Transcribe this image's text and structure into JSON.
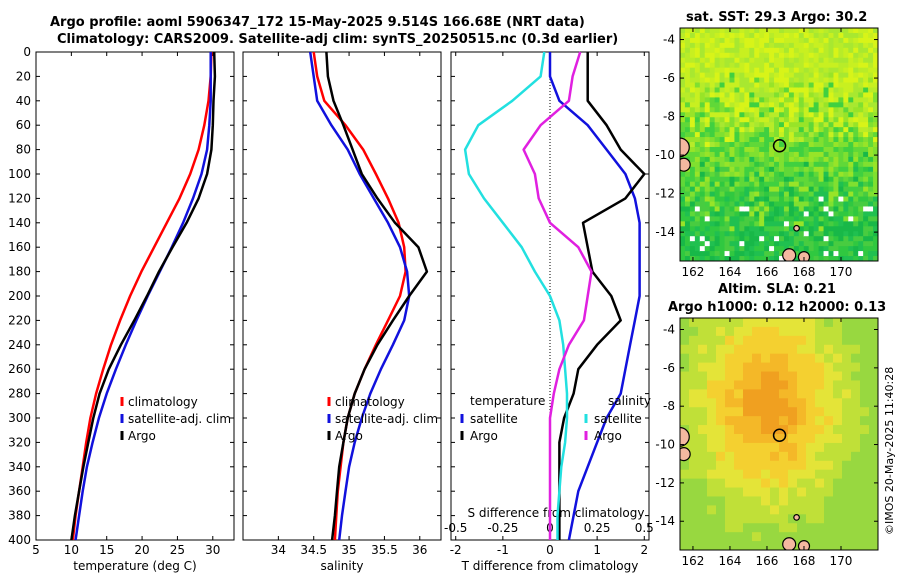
{
  "title": {
    "line1": "Argo profile: aoml 5906347_172 15-May-2025 9.514S 166.68E (NRT data)",
    "line2": "Climatology: CARS2009. Satellite-adj clim: synTS_20250515.nc (0.3d earlier)"
  },
  "map_titles": {
    "sst": "sat. SST: 29.3 Argo: 30.2",
    "sla1": "Altim. SLA: 0.21",
    "sla2": "Argo h1000: 0.12 h2000: 0.13"
  },
  "watermark": "©IMOS 20-May-2025 11:40:28",
  "colors": {
    "climatology": "#ff0000",
    "satellite": "#1111dd",
    "argo": "#000000",
    "sat_diff": "#22e0e0",
    "argo_sal_diff": "#e020e0"
  },
  "chart_data": [
    {
      "type": "line",
      "panel": "temperature",
      "xlabel": "temperature (deg C)",
      "ylabel": "depth",
      "xlim": [
        5,
        33
      ],
      "ylim": [
        0,
        400
      ],
      "xticks": [
        5,
        10,
        15,
        20,
        25,
        30
      ],
      "yticks": [
        0,
        20,
        40,
        60,
        80,
        100,
        120,
        140,
        160,
        180,
        200,
        220,
        240,
        260,
        280,
        300,
        320,
        340,
        360,
        380,
        400
      ],
      "legend": [
        "climatology",
        "satellite-adj. clim",
        "Argo"
      ],
      "series": [
        {
          "name": "climatology",
          "color": "#ff0000",
          "points": [
            [
              29.8,
              0
            ],
            [
              29.7,
              20
            ],
            [
              29.4,
              40
            ],
            [
              28.8,
              60
            ],
            [
              28.0,
              80
            ],
            [
              26.8,
              100
            ],
            [
              25.3,
              120
            ],
            [
              23.5,
              140
            ],
            [
              21.7,
              160
            ],
            [
              19.9,
              180
            ],
            [
              18.3,
              200
            ],
            [
              16.9,
              220
            ],
            [
              15.6,
              240
            ],
            [
              14.5,
              260
            ],
            [
              13.5,
              280
            ],
            [
              12.7,
              300
            ],
            [
              12.1,
              320
            ],
            [
              11.6,
              340
            ],
            [
              11.1,
              360
            ],
            [
              10.6,
              380
            ],
            [
              10.2,
              400
            ]
          ]
        },
        {
          "name": "satellite-adj. clim",
          "color": "#1111dd",
          "points": [
            [
              29.7,
              0
            ],
            [
              29.7,
              20
            ],
            [
              29.7,
              40
            ],
            [
              29.5,
              60
            ],
            [
              29.2,
              80
            ],
            [
              28.4,
              100
            ],
            [
              27.2,
              120
            ],
            [
              25.8,
              140
            ],
            [
              24.2,
              160
            ],
            [
              22.5,
              180
            ],
            [
              20.8,
              200
            ],
            [
              19.2,
              220
            ],
            [
              17.7,
              240
            ],
            [
              16.3,
              260
            ],
            [
              15.0,
              280
            ],
            [
              13.9,
              300
            ],
            [
              13.0,
              320
            ],
            [
              12.2,
              340
            ],
            [
              11.6,
              360
            ],
            [
              11.1,
              380
            ],
            [
              10.6,
              400
            ]
          ]
        },
        {
          "name": "Argo",
          "color": "#000000",
          "points": [
            [
              30.2,
              0
            ],
            [
              30.3,
              20
            ],
            [
              30.1,
              40
            ],
            [
              30.0,
              60
            ],
            [
              29.8,
              80
            ],
            [
              29.2,
              100
            ],
            [
              28.0,
              120
            ],
            [
              26.3,
              140
            ],
            [
              24.3,
              160
            ],
            [
              22.4,
              180
            ],
            [
              20.7,
              200
            ],
            [
              18.9,
              220
            ],
            [
              17.0,
              240
            ],
            [
              15.3,
              260
            ],
            [
              14.0,
              280
            ],
            [
              13.1,
              300
            ],
            [
              12.4,
              320
            ],
            [
              11.7,
              340
            ],
            [
              11.1,
              360
            ],
            [
              10.5,
              380
            ],
            [
              10.0,
              400
            ]
          ]
        }
      ]
    },
    {
      "type": "line",
      "panel": "salinity",
      "xlabel": "salinity",
      "xlim": [
        33.5,
        36.3
      ],
      "ylim": [
        0,
        400
      ],
      "xticks": [
        34,
        34.5,
        35,
        35.5,
        36
      ],
      "legend": [
        "climatology",
        "satellite-adj. clim",
        "Argo"
      ],
      "series": [
        {
          "name": "climatology",
          "color": "#ff0000",
          "points": [
            [
              34.5,
              0
            ],
            [
              34.55,
              20
            ],
            [
              34.65,
              40
            ],
            [
              34.95,
              60
            ],
            [
              35.2,
              80
            ],
            [
              35.38,
              100
            ],
            [
              35.55,
              120
            ],
            [
              35.7,
              140
            ],
            [
              35.78,
              160
            ],
            [
              35.8,
              180
            ],
            [
              35.72,
              200
            ],
            [
              35.55,
              220
            ],
            [
              35.38,
              240
            ],
            [
              35.22,
              260
            ],
            [
              35.08,
              280
            ],
            [
              34.98,
              300
            ],
            [
              34.92,
              320
            ],
            [
              34.88,
              340
            ],
            [
              34.84,
              360
            ],
            [
              34.82,
              380
            ],
            [
              34.8,
              400
            ]
          ]
        },
        {
          "name": "satellite-adj. clim",
          "color": "#1111dd",
          "points": [
            [
              34.45,
              0
            ],
            [
              34.5,
              20
            ],
            [
              34.55,
              40
            ],
            [
              34.75,
              60
            ],
            [
              34.98,
              80
            ],
            [
              35.15,
              100
            ],
            [
              35.35,
              120
            ],
            [
              35.55,
              140
            ],
            [
              35.72,
              160
            ],
            [
              35.82,
              180
            ],
            [
              35.85,
              200
            ],
            [
              35.78,
              220
            ],
            [
              35.62,
              240
            ],
            [
              35.45,
              260
            ],
            [
              35.3,
              280
            ],
            [
              35.18,
              300
            ],
            [
              35.08,
              320
            ],
            [
              35.0,
              340
            ],
            [
              34.95,
              360
            ],
            [
              34.9,
              380
            ],
            [
              34.86,
              400
            ]
          ]
        },
        {
          "name": "Argo",
          "color": "#000000",
          "points": [
            [
              34.68,
              0
            ],
            [
              34.7,
              20
            ],
            [
              34.78,
              40
            ],
            [
              34.92,
              60
            ],
            [
              35.05,
              80
            ],
            [
              35.18,
              100
            ],
            [
              35.4,
              120
            ],
            [
              35.65,
              140
            ],
            [
              35.98,
              160
            ],
            [
              36.1,
              180
            ],
            [
              35.85,
              200
            ],
            [
              35.62,
              220
            ],
            [
              35.4,
              240
            ],
            [
              35.22,
              260
            ],
            [
              35.08,
              280
            ],
            [
              34.98,
              300
            ],
            [
              34.92,
              320
            ],
            [
              34.86,
              340
            ],
            [
              34.83,
              360
            ],
            [
              34.8,
              380
            ],
            [
              34.76,
              400
            ]
          ]
        }
      ]
    },
    {
      "type": "line",
      "panel": "difference",
      "xlabel": "T difference from climatology",
      "xlabel_top": "S difference from climatology",
      "xlim": [
        -2.1,
        2.1
      ],
      "ylim": [
        0,
        400
      ],
      "xticks": [
        -2,
        -1,
        0,
        1,
        2
      ],
      "xticks_s": [
        -0.5,
        -0.25,
        0,
        0.25,
        0.5
      ],
      "xtick_labels_s": [
        "-0.5",
        "-0.25",
        "0",
        "0.25",
        "0.5"
      ],
      "legend_temperature_title": "temperature",
      "legend_salinity_title": "salinity",
      "legend_temperature": [
        "satellite",
        "Argo"
      ],
      "legend_salinity": [
        "satellite",
        "Argo"
      ],
      "series": [
        {
          "name": "temperature satellite",
          "color": "#1111dd",
          "points": [
            [
              0.0,
              0
            ],
            [
              0.0,
              20
            ],
            [
              0.2,
              40
            ],
            [
              0.8,
              60
            ],
            [
              1.2,
              80
            ],
            [
              1.6,
              100
            ],
            [
              1.8,
              120
            ],
            [
              1.9,
              140
            ],
            [
              1.9,
              160
            ],
            [
              1.9,
              180
            ],
            [
              1.9,
              200
            ],
            [
              1.8,
              220
            ],
            [
              1.7,
              240
            ],
            [
              1.6,
              260
            ],
            [
              1.5,
              280
            ],
            [
              1.2,
              300
            ],
            [
              1.0,
              320
            ],
            [
              0.8,
              340
            ],
            [
              0.6,
              360
            ],
            [
              0.5,
              380
            ],
            [
              0.4,
              400
            ]
          ]
        },
        {
          "name": "temperature Argo",
          "color": "#000000",
          "points": [
            [
              0.8,
              0
            ],
            [
              0.8,
              20
            ],
            [
              0.8,
              40
            ],
            [
              1.2,
              60
            ],
            [
              1.5,
              80
            ],
            [
              2.0,
              100
            ],
            [
              1.6,
              120
            ],
            [
              0.7,
              140
            ],
            [
              0.8,
              160
            ],
            [
              0.9,
              180
            ],
            [
              1.3,
              200
            ],
            [
              1.5,
              220
            ],
            [
              1.0,
              240
            ],
            [
              0.6,
              260
            ],
            [
              0.5,
              280
            ],
            [
              0.3,
              300
            ],
            [
              0.2,
              320
            ],
            [
              0.2,
              340
            ],
            [
              0.2,
              360
            ],
            [
              0.2,
              380
            ],
            [
              0.2,
              400
            ]
          ]
        },
        {
          "name": "salinity satellite",
          "color": "#22e0e0",
          "points": [
            [
              -0.03,
              0
            ],
            [
              -0.05,
              20
            ],
            [
              -0.2,
              40
            ],
            [
              -0.38,
              60
            ],
            [
              -0.45,
              80
            ],
            [
              -0.43,
              100
            ],
            [
              -0.35,
              120
            ],
            [
              -0.25,
              140
            ],
            [
              -0.15,
              160
            ],
            [
              -0.08,
              180
            ],
            [
              0.0,
              200
            ],
            [
              0.05,
              220
            ],
            [
              0.07,
              240
            ],
            [
              0.08,
              260
            ],
            [
              0.09,
              280
            ],
            [
              0.09,
              300
            ],
            [
              0.08,
              320
            ],
            [
              0.06,
              340
            ],
            [
              0.05,
              360
            ],
            [
              0.04,
              380
            ],
            [
              0.04,
              400
            ]
          ]
        },
        {
          "name": "salinity Argo",
          "color": "#e020e0",
          "points": [
            [
              0.16,
              0
            ],
            [
              0.12,
              20
            ],
            [
              0.1,
              40
            ],
            [
              -0.05,
              60
            ],
            [
              -0.14,
              80
            ],
            [
              -0.08,
              100
            ],
            [
              -0.06,
              120
            ],
            [
              0.0,
              140
            ],
            [
              0.15,
              160
            ],
            [
              0.22,
              180
            ],
            [
              0.2,
              200
            ],
            [
              0.18,
              220
            ],
            [
              0.1,
              240
            ],
            [
              0.05,
              260
            ],
            [
              0.02,
              280
            ],
            [
              0.0,
              300
            ],
            [
              0.0,
              320
            ],
            [
              0.0,
              340
            ],
            [
              0.0,
              360
            ],
            [
              0.0,
              380
            ],
            [
              0.0,
              400
            ]
          ]
        }
      ]
    },
    {
      "type": "heatmap",
      "panel": "sst_map",
      "title": "sat. SST: 29.3 Argo: 30.2",
      "xlim": [
        161.3,
        172.0
      ],
      "ylim": [
        -15.5,
        -3.4
      ],
      "xticks": [
        162,
        164,
        166,
        168,
        170
      ],
      "yticks": [
        -4,
        -6,
        -8,
        -10,
        -12,
        -14
      ],
      "marker": {
        "lon": 166.68,
        "lat": -9.514
      }
    },
    {
      "type": "heatmap",
      "panel": "sla_map",
      "title": "Altim. SLA: 0.21",
      "xlim": [
        161.3,
        172.0
      ],
      "ylim": [
        -15.5,
        -3.4
      ],
      "xticks": [
        162,
        164,
        166,
        168,
        170
      ],
      "yticks": [
        -4,
        -6,
        -8,
        -10,
        -12,
        -14
      ],
      "marker": {
        "lon": 166.68,
        "lat": -9.514
      }
    }
  ]
}
